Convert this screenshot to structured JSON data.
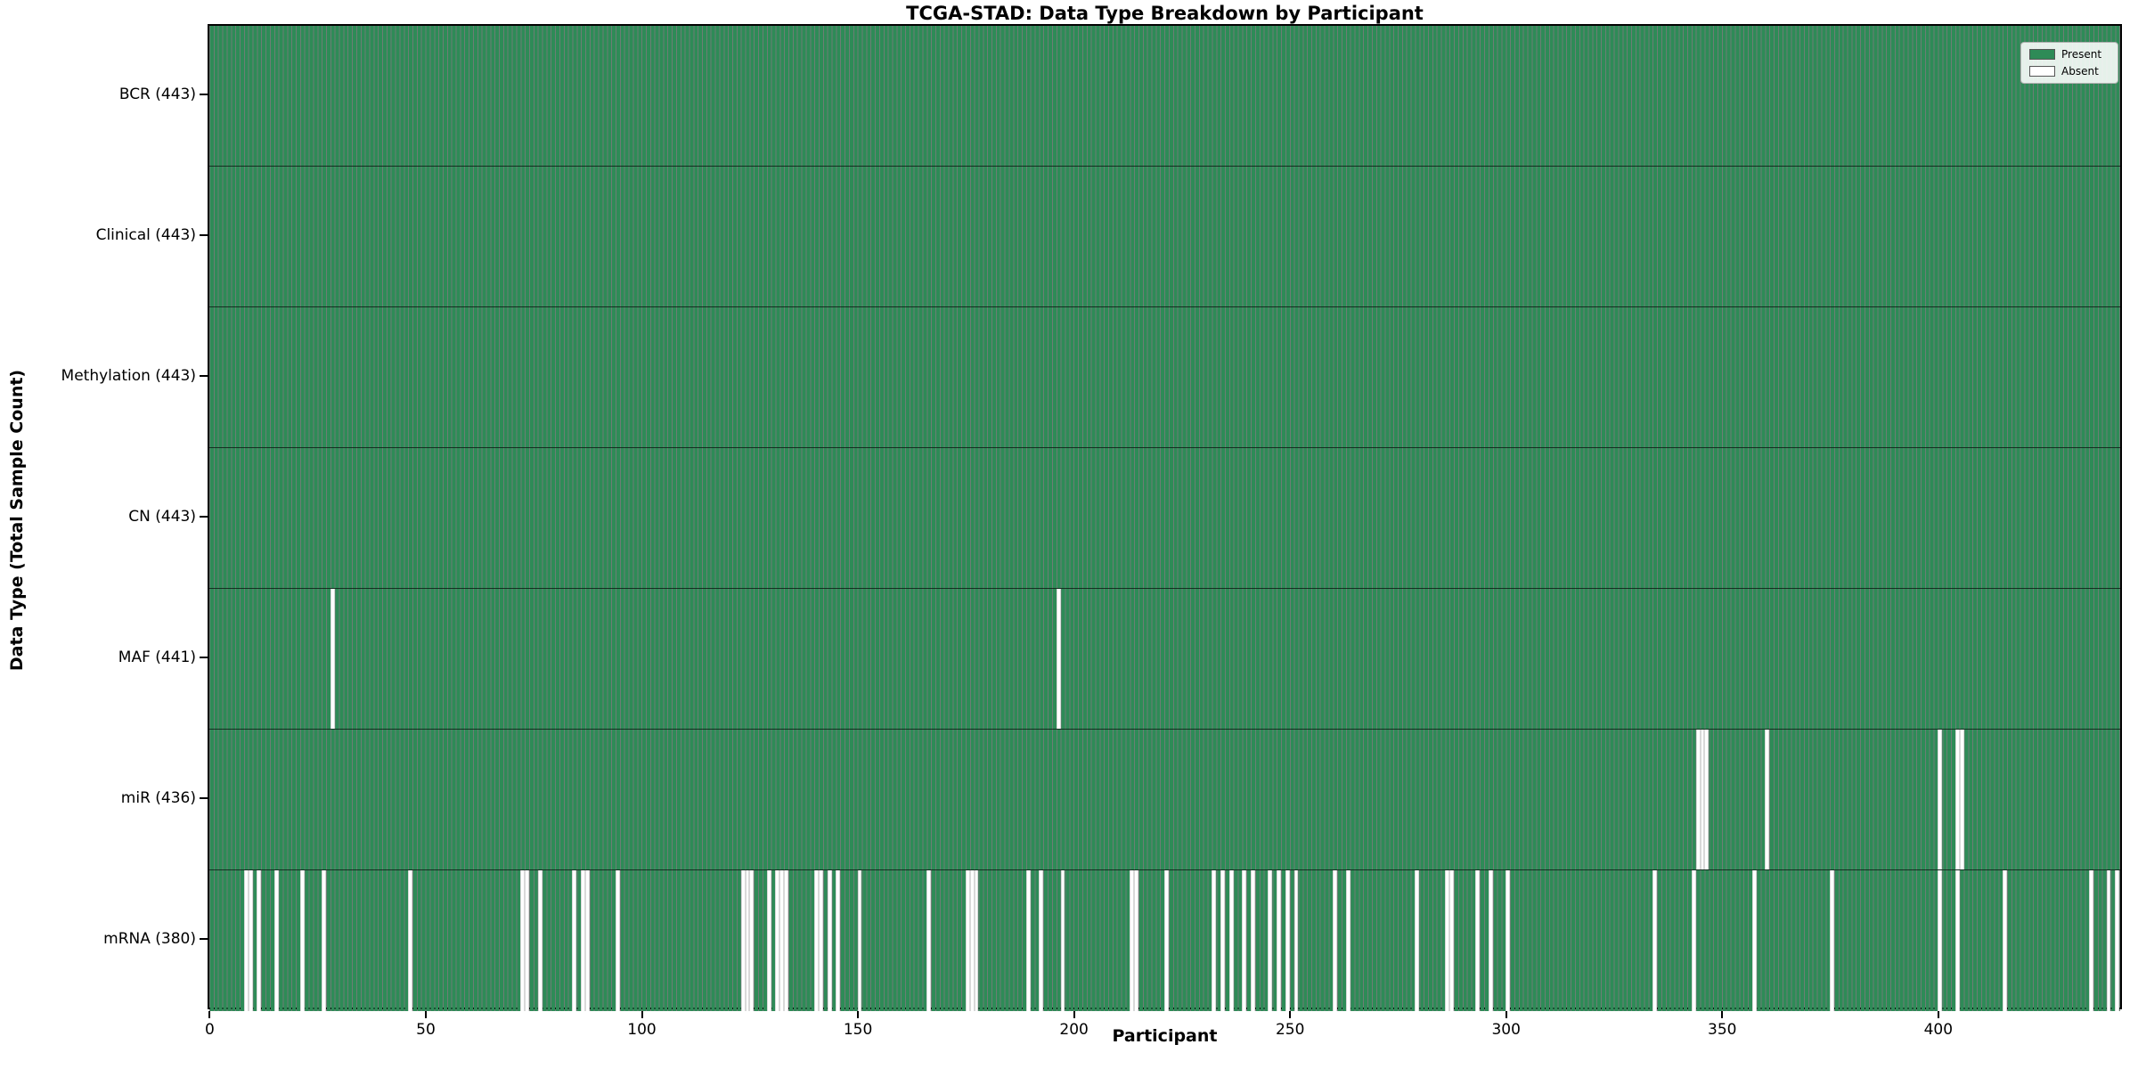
{
  "chart_data": {
    "type": "heatmap",
    "title": "TCGA-STAD: Data Type Breakdown by Participant",
    "xlabel": "Participant",
    "ylabel": "Data Type (Total Sample Count)",
    "n_participants": 443,
    "x_range": [
      0,
      443
    ],
    "x_ticks": [
      0,
      50,
      100,
      150,
      200,
      250,
      300,
      350,
      400
    ],
    "grid": false,
    "legend_position": "upper right",
    "legend": [
      {
        "label": "Present",
        "color": "#2e8b57"
      },
      {
        "label": "Absent",
        "color": "#ffffff"
      }
    ],
    "colors": {
      "present": "#2e8b57",
      "absent": "#ffffff",
      "bar_edge": "rgba(10,40,25,0.6)",
      "frame": "#000000"
    },
    "rows": [
      {
        "name": "BCR",
        "label": "BCR (443)",
        "count": 443,
        "absent": []
      },
      {
        "name": "Clinical",
        "label": "Clinical (443)",
        "count": 443,
        "absent": []
      },
      {
        "name": "Methylation",
        "label": "Methylation (443)",
        "count": 443,
        "absent": []
      },
      {
        "name": "CN",
        "label": "CN (443)",
        "count": 443,
        "absent": []
      },
      {
        "name": "MAF",
        "label": "MAF (441)",
        "count": 441,
        "absent": [
          28,
          196
        ]
      },
      {
        "name": "miR",
        "label": "miR (436)",
        "count": 436,
        "absent": [
          344,
          345,
          346,
          360,
          400,
          404,
          405
        ]
      },
      {
        "name": "mRNA",
        "label": "mRNA (380)",
        "count": 380,
        "absent": [
          8,
          9,
          11,
          15,
          21,
          26,
          46,
          72,
          73,
          76,
          84,
          86,
          87,
          94,
          123,
          124,
          125,
          129,
          131,
          132,
          133,
          140,
          141,
          143,
          145,
          150,
          166,
          175,
          176,
          177,
          189,
          192,
          197,
          213,
          214,
          221,
          232,
          234,
          236,
          239,
          241,
          245,
          247,
          249,
          251,
          260,
          263,
          279,
          286,
          287,
          293,
          296,
          300,
          334,
          343,
          357,
          375,
          400,
          404,
          415,
          435,
          439,
          441
        ]
      }
    ]
  }
}
